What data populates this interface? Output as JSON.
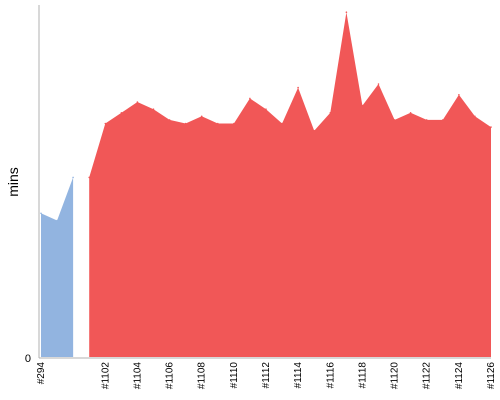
{
  "chart_data": {
    "type": "area",
    "ylabel": "mins",
    "y_tick_labels": [
      "0"
    ],
    "ylim": [
      0,
      9.8
    ],
    "grid": false,
    "x_tick_labels": [
      "#294",
      "#1102",
      "#1104",
      "#1106",
      "#1108",
      "#1110",
      "#1112",
      "#1114",
      "#1116",
      "#1118",
      "#1120",
      "#1122",
      "#1124",
      "#1126"
    ],
    "x": [
      294,
      295,
      296,
      1101,
      1102,
      1103,
      1104,
      1105,
      1106,
      1107,
      1108,
      1109,
      1110,
      1111,
      1112,
      1113,
      1114,
      1115,
      1116,
      1117,
      1118,
      1119,
      1120,
      1121,
      1122,
      1123,
      1124,
      1125,
      1126
    ],
    "series": [
      {
        "color": "#92b4e0",
        "points": [
          [
            294,
            4.0
          ],
          [
            295,
            3.8
          ],
          [
            296,
            5.0
          ]
        ]
      },
      {
        "color": "#f15757",
        "points": [
          [
            1101,
            5.0
          ],
          [
            1102,
            6.5
          ],
          [
            1103,
            6.8
          ],
          [
            1104,
            7.1
          ],
          [
            1105,
            6.9
          ],
          [
            1106,
            6.6
          ],
          [
            1107,
            6.5
          ],
          [
            1108,
            6.7
          ],
          [
            1109,
            6.5
          ],
          [
            1110,
            6.5
          ],
          [
            1111,
            7.2
          ],
          [
            1112,
            6.9
          ],
          [
            1113,
            6.5
          ],
          [
            1114,
            7.5
          ],
          [
            1115,
            6.3
          ],
          [
            1116,
            6.8
          ],
          [
            1117,
            9.6
          ],
          [
            1118,
            7.0
          ],
          [
            1119,
            7.6
          ],
          [
            1120,
            6.6
          ],
          [
            1121,
            6.8
          ],
          [
            1122,
            6.6
          ],
          [
            1123,
            6.6
          ],
          [
            1124,
            7.3
          ],
          [
            1125,
            6.7
          ],
          [
            1126,
            6.4
          ]
        ]
      }
    ]
  }
}
